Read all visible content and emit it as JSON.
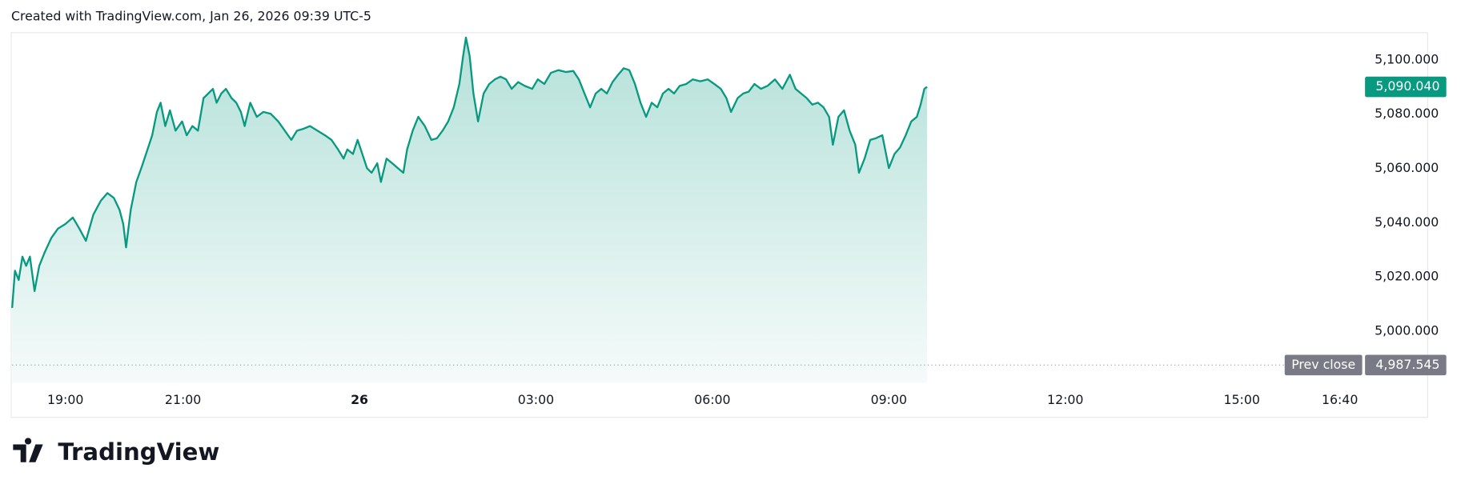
{
  "header": "Created with TradingView.com, Jan 26, 2026 09:39 UTC-5",
  "brand": "TradingView",
  "chart_data": {
    "type": "area",
    "x": [
      -5.905,
      -5.857,
      -5.794,
      -5.73,
      -5.667,
      -5.603,
      -5.524,
      -5.444,
      -5.349,
      -5.238,
      -5.127,
      -5.0,
      -4.873,
      -4.762,
      -4.651,
      -4.524,
      -4.397,
      -4.286,
      -4.175,
      -4.079,
      -4.016,
      -3.968,
      -3.889,
      -3.794,
      -3.698,
      -3.603,
      -3.524,
      -3.444,
      -3.381,
      -3.302,
      -3.222,
      -3.127,
      -3.016,
      -2.937,
      -2.841,
      -2.746,
      -2.651,
      -2.571,
      -2.492,
      -2.429,
      -2.349,
      -2.27,
      -2.175,
      -2.095,
      -2.016,
      -1.952,
      -1.857,
      -1.746,
      -1.635,
      -1.508,
      -1.381,
      -1.27,
      -1.159,
      -1.063,
      -0.952,
      -0.841,
      -0.714,
      -0.587,
      -0.476,
      -0.365,
      -0.27,
      -0.206,
      -0.111,
      -0.032,
      0.048,
      0.127,
      0.206,
      0.302,
      0.365,
      0.46,
      0.556,
      0.651,
      0.746,
      0.81,
      0.905,
      1.0,
      1.111,
      1.222,
      1.317,
      1.413,
      1.508,
      1.603,
      1.698,
      1.762,
      1.81,
      1.873,
      1.937,
      2.016,
      2.111,
      2.206,
      2.302,
      2.397,
      2.492,
      2.587,
      2.698,
      2.81,
      2.937,
      3.032,
      3.143,
      3.254,
      3.381,
      3.508,
      3.635,
      3.73,
      3.825,
      3.921,
      4.016,
      4.111,
      4.206,
      4.302,
      4.397,
      4.492,
      4.587,
      4.683,
      4.778,
      4.873,
      4.968,
      5.063,
      5.159,
      5.254,
      5.349,
      5.444,
      5.556,
      5.667,
      5.794,
      5.921,
      6.032,
      6.143,
      6.238,
      6.317,
      6.429,
      6.524,
      6.619,
      6.714,
      6.825,
      6.937,
      7.063,
      7.19,
      7.317,
      7.413,
      7.508,
      7.603,
      7.698,
      7.794,
      7.889,
      7.984,
      8.048,
      8.143,
      8.238,
      8.333,
      8.429,
      8.492,
      8.587,
      8.683,
      8.778,
      8.889,
      9.0,
      9.095,
      9.19,
      9.286,
      9.381,
      9.476,
      9.54,
      9.603,
      9.65
    ],
    "series": [
      {
        "color": "#089981",
        "values": [
          5008.6,
          5022.3,
          5018.9,
          5027.5,
          5024.1,
          5027.5,
          5014.8,
          5024.1,
          5029.2,
          5034.4,
          5037.8,
          5039.5,
          5041.9,
          5037.8,
          5033.3,
          5043.0,
          5048.1,
          5050.9,
          5049.1,
          5044.7,
          5039.5,
          5030.9,
          5044.7,
          5055.0,
          5060.8,
          5067.0,
          5072.2,
          5080.8,
          5084.2,
          5075.6,
          5081.4,
          5073.9,
          5077.3,
          5072.2,
          5075.6,
          5073.9,
          5085.9,
          5087.6,
          5089.3,
          5084.2,
          5087.6,
          5089.3,
          5085.9,
          5084.2,
          5080.8,
          5075.6,
          5084.2,
          5079.0,
          5080.8,
          5080.1,
          5077.3,
          5073.9,
          5070.5,
          5073.9,
          5074.6,
          5075.6,
          5073.9,
          5072.2,
          5070.5,
          5067.0,
          5063.6,
          5067.0,
          5065.3,
          5070.5,
          5065.3,
          5060.1,
          5058.4,
          5061.9,
          5055.0,
          5063.6,
          5061.9,
          5060.1,
          5058.4,
          5067.0,
          5073.9,
          5079.0,
          5075.6,
          5070.5,
          5071.1,
          5073.9,
          5077.3,
          5082.5,
          5091.1,
          5101.4,
          5108.2,
          5101.4,
          5087.6,
          5077.3,
          5087.6,
          5091.1,
          5092.8,
          5093.8,
          5092.8,
          5089.3,
          5091.8,
          5090.4,
          5089.3,
          5092.8,
          5091.1,
          5095.2,
          5096.2,
          5095.5,
          5095.9,
          5092.8,
          5087.6,
          5082.5,
          5087.6,
          5089.3,
          5087.6,
          5091.8,
          5094.5,
          5096.9,
          5096.2,
          5091.1,
          5084.2,
          5079.0,
          5084.2,
          5082.5,
          5087.6,
          5089.3,
          5087.6,
          5090.4,
          5091.1,
          5092.8,
          5092.1,
          5092.8,
          5091.1,
          5089.3,
          5085.9,
          5080.8,
          5085.9,
          5087.6,
          5088.3,
          5091.1,
          5089.3,
          5090.4,
          5092.8,
          5089.3,
          5094.5,
          5089.3,
          5087.6,
          5085.9,
          5083.5,
          5084.2,
          5082.5,
          5079.0,
          5068.7,
          5079.0,
          5081.4,
          5073.9,
          5068.7,
          5058.4,
          5063.6,
          5070.5,
          5071.1,
          5072.2,
          5060.1,
          5065.3,
          5067.7,
          5072.2,
          5077.3,
          5079.0,
          5083.5,
          5089.3,
          5090.04
        ]
      }
    ],
    "xlim": [
      -5.905,
      17.0
    ],
    "ylim": [
      4981,
      5110
    ],
    "xticks": [
      {
        "value": -5,
        "label": "19:00"
      },
      {
        "value": -3,
        "label": "21:00"
      },
      {
        "value": 0,
        "label": "26"
      },
      {
        "value": 3,
        "label": "03:00"
      },
      {
        "value": 6,
        "label": "06:00"
      },
      {
        "value": 9,
        "label": "09:00"
      },
      {
        "value": 12,
        "label": "12:00"
      },
      {
        "value": 15,
        "label": "15:00"
      },
      {
        "value": 16.667,
        "label": "16:40"
      }
    ],
    "yticks": [
      {
        "value": 5000,
        "label": "5,000.000"
      },
      {
        "value": 5020,
        "label": "5,020.000"
      },
      {
        "value": 5040,
        "label": "5,040.000"
      },
      {
        "value": 5060,
        "label": "5,060.000"
      },
      {
        "value": 5080,
        "label": "5,080.000"
      },
      {
        "value": 5100,
        "label": "5,100.000"
      }
    ],
    "last_price": {
      "value": 5090.04,
      "label": "5,090.040"
    },
    "prev_close": {
      "value": 4987.545,
      "label": "4,987.545",
      "title": "Prev close"
    }
  }
}
